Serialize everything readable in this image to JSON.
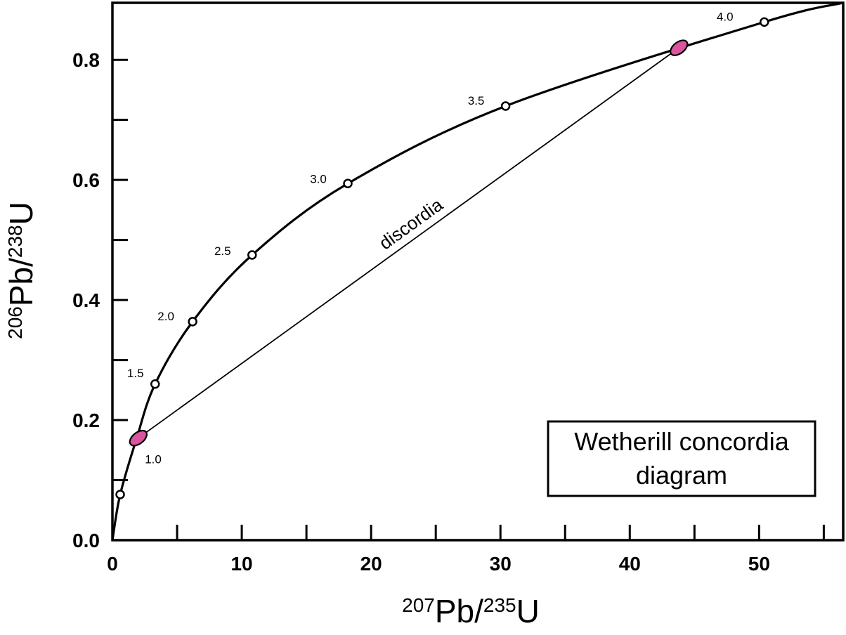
{
  "chart_data": {
    "type": "line",
    "title": "Wetherill concordia diagram",
    "title_lines": [
      "Wetherill concordia",
      "diagram"
    ],
    "xlabel": {
      "sup1": "207",
      "base1": "Pb/",
      "sup2": "235",
      "base2": "U"
    },
    "ylabel": {
      "sup1": "206",
      "base1": "Pb/",
      "sup2": "238",
      "base2": "U"
    },
    "xlim": [
      0,
      56.5
    ],
    "ylim": [
      0,
      0.895
    ],
    "xticks_major": [
      0,
      10,
      20,
      30,
      40,
      50
    ],
    "xtick_labels": [
      "0",
      "10",
      "20",
      "30",
      "40",
      "50"
    ],
    "xticks_minor": [
      5,
      15,
      25,
      35,
      45,
      55
    ],
    "yticks_major": [
      0,
      0.2,
      0.4,
      0.6,
      0.8
    ],
    "ytick_labels": [
      "0.0",
      "0.2",
      "0.4",
      "0.6",
      "0.8"
    ],
    "yticks_minor": [
      0.1,
      0.3,
      0.5,
      0.7
    ],
    "concordia_age_points": [
      {
        "label": "",
        "x": 0.6,
        "y": 0.076
      },
      {
        "label": "1.0",
        "x": 1.85,
        "y": 0.168
      },
      {
        "label": "1.5",
        "x": 3.3,
        "y": 0.26
      },
      {
        "label": "2.0",
        "x": 6.2,
        "y": 0.364
      },
      {
        "label": "2.5",
        "x": 10.8,
        "y": 0.475
      },
      {
        "label": "3.0",
        "x": 18.2,
        "y": 0.594
      },
      {
        "label": "3.5",
        "x": 30.4,
        "y": 0.723
      },
      {
        "label": "4.0",
        "x": 50.4,
        "y": 0.863
      }
    ],
    "intercepts": [
      {
        "x": 2.0,
        "y": 0.17
      },
      {
        "x": 43.8,
        "y": 0.82
      }
    ],
    "discordia_label": "discordia",
    "colors": {
      "line": "#000000",
      "intercept_fill": "#d9559e"
    }
  }
}
